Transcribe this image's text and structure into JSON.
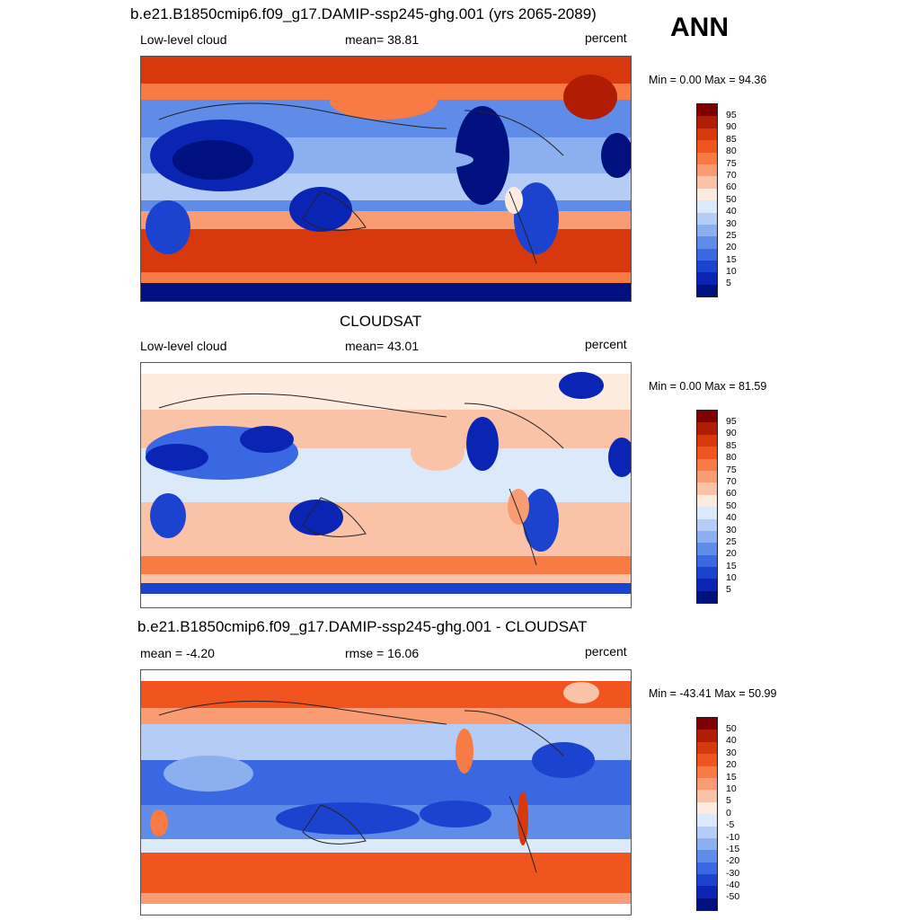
{
  "season": "ANN",
  "panels": [
    {
      "title": "b.e21.B1850cmip6.f09_g17.DAMIP-ssp245-ghg.001 (yrs 2065-2089)",
      "left": "Low-level cloud",
      "center": "mean=  38.81",
      "right": "percent",
      "minmax": "Min =   0.00 Max =  94.36",
      "colorbar_labels": [
        "95",
        "90",
        "85",
        "80",
        "75",
        "70",
        "60",
        "50",
        "40",
        "30",
        "25",
        "20",
        "15",
        "10",
        "5"
      ]
    },
    {
      "title": "CLOUDSAT",
      "left": "Low-level cloud",
      "center": "mean=  43.01",
      "right": "percent",
      "minmax": "Min =   0.00 Max =  81.59",
      "colorbar_labels": [
        "95",
        "90",
        "85",
        "80",
        "75",
        "70",
        "60",
        "50",
        "40",
        "30",
        "25",
        "20",
        "15",
        "10",
        "5"
      ]
    },
    {
      "title": "b.e21.B1850cmip6.f09_g17.DAMIP-ssp245-ghg.001 - CLOUDSAT",
      "left": "mean =  -4.20",
      "center": "rmse =  16.06",
      "right": "percent",
      "minmax": "Min = -43.41 Max =  50.99",
      "colorbar_labels": [
        "50",
        "40",
        "30",
        "20",
        "15",
        "10",
        "5",
        "0",
        "-5",
        "-10",
        "-15",
        "-20",
        "-30",
        "-40",
        "-50"
      ]
    }
  ],
  "colors": {
    "palette": [
      "#7f0000",
      "#b11d04",
      "#d8390c",
      "#f0551f",
      "#f87a45",
      "#f99c73",
      "#fac3a8",
      "#fdebe0",
      "#dbe9fb",
      "#b5cdf6",
      "#8caff0",
      "#5f8ce8",
      "#3a67e2",
      "#1c43cf",
      "#0a25b3",
      "#00107f"
    ]
  }
}
